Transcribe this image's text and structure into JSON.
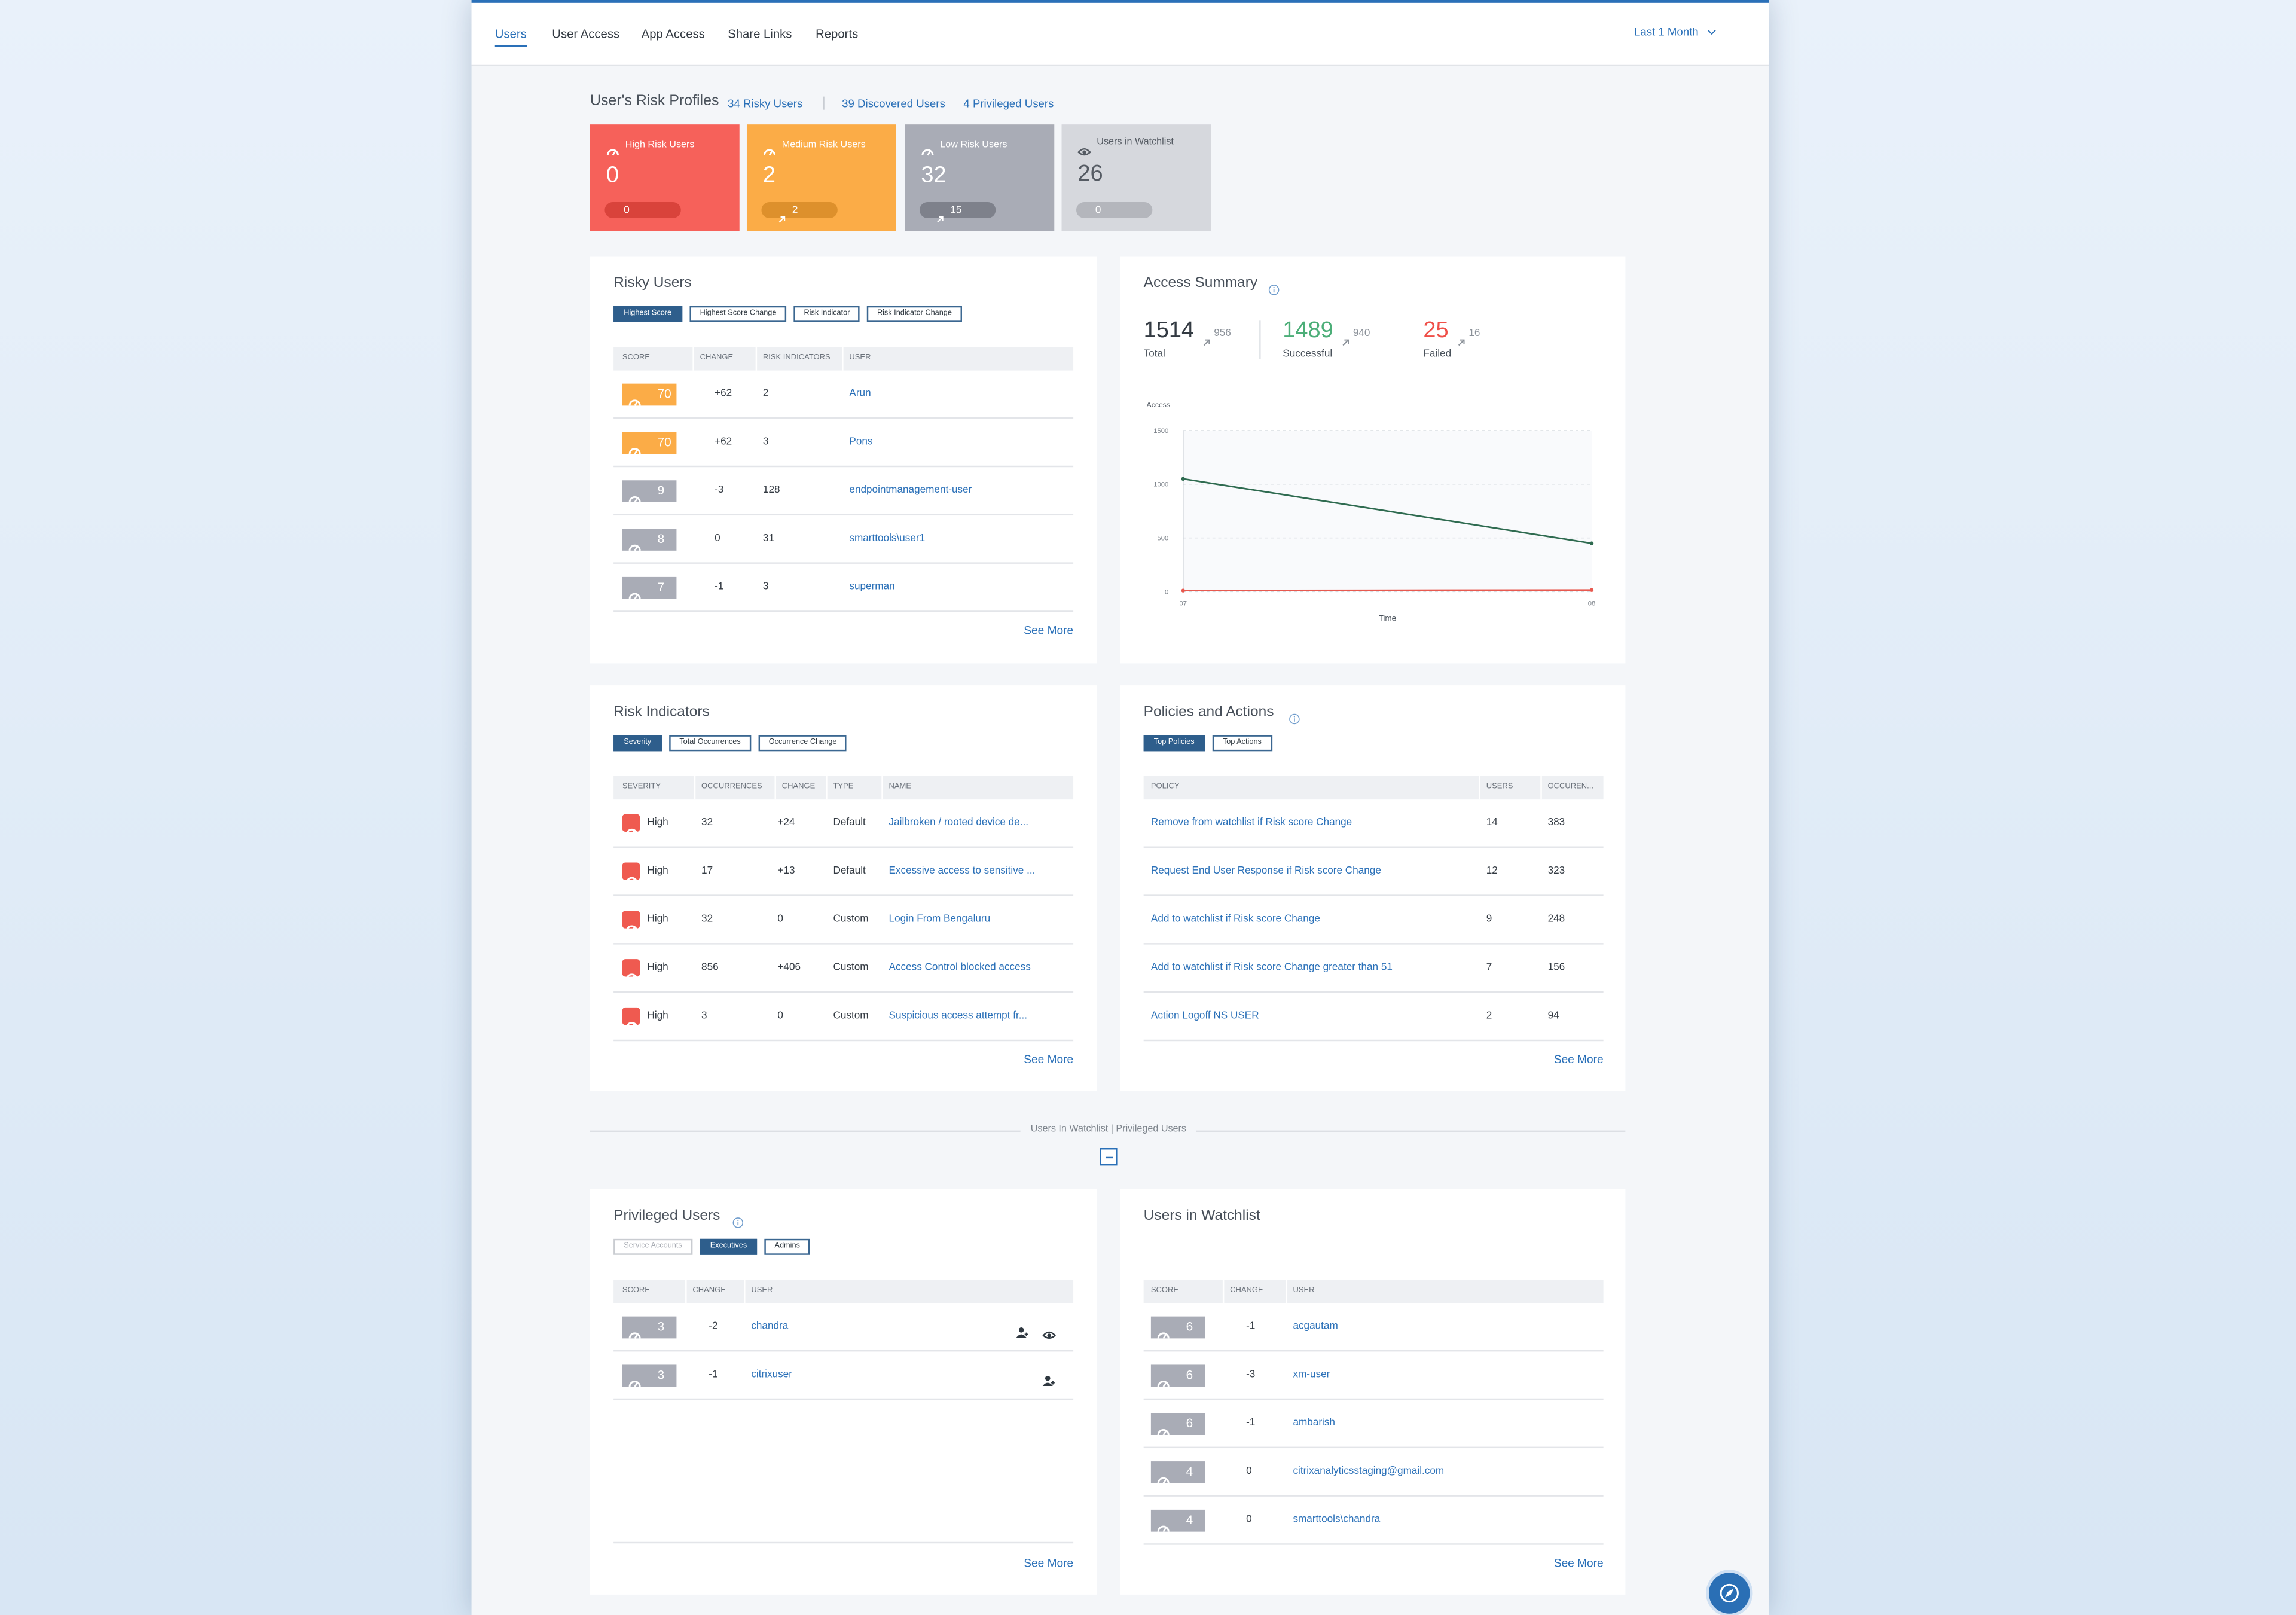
{
  "nav": {
    "tabs": [
      "Users",
      "User Access",
      "App Access",
      "Share Links",
      "Reports"
    ],
    "period": "Last 1 Month"
  },
  "risk_profiles": {
    "title": "User's Risk Profiles",
    "links": [
      "34 Risky Users",
      "39 Discovered Users",
      "4 Privileged Users"
    ],
    "cards": [
      {
        "label": "High Risk Users",
        "value": "0",
        "change": "0",
        "color": "#f6615a",
        "pill": "#d9433b",
        "text": "#ffffff"
      },
      {
        "label": "Medium Risk Users",
        "value": "2",
        "change": "2",
        "color": "#fbac47",
        "pill": "#dd902c",
        "text": "#ffffff"
      },
      {
        "label": "Low Risk Users",
        "value": "32",
        "change": "15",
        "color": "#a9acb6",
        "pill": "#7e818b",
        "text": "#ffffff"
      },
      {
        "label": "Users in Watchlist",
        "value": "26",
        "change": "0",
        "color": "#d6d8dd",
        "pill": "#b4b6bc",
        "text": "#555b63"
      }
    ]
  },
  "risky_users": {
    "title": "Risky Users",
    "tabs": [
      "Highest Score",
      "Highest Score Change",
      "Risk Indicator",
      "Risk Indicator Change"
    ],
    "columns": [
      "SCORE",
      "CHANGE",
      "RISK INDICATORS",
      "USER"
    ],
    "rows": [
      [
        "70",
        "+62",
        "2",
        "Arun"
      ],
      [
        "70",
        "+62",
        "3",
        "Pons"
      ],
      [
        "9",
        "-3",
        "128",
        "endpointmanagement-user"
      ],
      [
        "8",
        "0",
        "31",
        "smarttools\\user1"
      ],
      [
        "7",
        "-1",
        "3",
        "superman"
      ]
    ],
    "score_colors": [
      "#fbac47",
      "#fbac47",
      "#a9acb6",
      "#a9acb6",
      "#a9acb6"
    ],
    "see_more": "See More"
  },
  "access_summary": {
    "title": "Access Summary",
    "stats": [
      {
        "value": "1514",
        "change": "956",
        "label": "Total",
        "color": "#333a42"
      },
      {
        "value": "1489",
        "change": "940",
        "label": "Successful",
        "color": "#4cae78"
      },
      {
        "value": "25",
        "change": "16",
        "label": "Failed",
        "color": "#ef4f48"
      }
    ],
    "chart": {
      "type": "line",
      "y_label": "Access",
      "x_label": "Time",
      "x": [
        "07",
        "08"
      ],
      "series": [
        {
          "color": "#2f6b50",
          "values": [
            1050,
            450
          ]
        },
        {
          "color": "#e8594f",
          "values": [
            10,
            15
          ]
        }
      ],
      "ylim": [
        0,
        1500
      ],
      "yticks": [
        0,
        500,
        1000,
        1500
      ],
      "grid": true
    }
  },
  "risk_indicators": {
    "title": "Risk Indicators",
    "tabs": [
      "Severity",
      "Total Occurrences",
      "Occurrence Change"
    ],
    "columns": [
      "SEVERITY",
      "OCCURRENCES",
      "CHANGE",
      "TYPE",
      "NAME"
    ],
    "rows": [
      [
        "High",
        "32",
        "+24",
        "Default",
        "Jailbroken / rooted device de..."
      ],
      [
        "High",
        "17",
        "+13",
        "Default",
        "Excessive access to sensitive ..."
      ],
      [
        "High",
        "32",
        "0",
        "Custom",
        "Login From Bengaluru"
      ],
      [
        "High",
        "856",
        "+406",
        "Custom",
        "Access Control blocked access"
      ],
      [
        "High",
        "3",
        "0",
        "Custom",
        "Suspicious access attempt fr..."
      ]
    ],
    "see_more": "See More"
  },
  "policies": {
    "title": "Policies and Actions",
    "tabs": [
      "Top Policies",
      "Top Actions"
    ],
    "columns": [
      "POLICY",
      "USERS",
      "OCCUREN..."
    ],
    "rows": [
      [
        "Remove from watchlist if Risk score Change",
        "14",
        "383"
      ],
      [
        "Request End User Response if Risk score Change",
        "12",
        "323"
      ],
      [
        "Add to watchlist if Risk score Change",
        "9",
        "248"
      ],
      [
        "Add to watchlist if Risk score Change greater than 51",
        "7",
        "156"
      ],
      [
        "Action Logoff NS USER",
        "2",
        "94"
      ]
    ],
    "see_more": "See More"
  },
  "divider": "Users In Watchlist | Privileged Users",
  "privileged": {
    "title": "Privileged Users",
    "tabs": [
      "Service Accounts",
      "Executives",
      "Admins"
    ],
    "columns": [
      "SCORE",
      "CHANGE",
      "USER"
    ],
    "rows": [
      [
        "3",
        "-2",
        "chandra"
      ],
      [
        "3",
        "-1",
        "citrixuser"
      ]
    ],
    "score_colors": [
      "#a9acb6",
      "#a9acb6"
    ],
    "see_more": "See More"
  },
  "watchlist": {
    "title": "Users in Watchlist",
    "columns": [
      "SCORE",
      "CHANGE",
      "USER"
    ],
    "rows": [
      [
        "6",
        "-1",
        "acgautam"
      ],
      [
        "6",
        "-3",
        "xm-user"
      ],
      [
        "6",
        "-1",
        "ambarish"
      ],
      [
        "4",
        "0",
        "citrixanalyticsstaging@gmail.com"
      ],
      [
        "4",
        "0",
        "smarttools\\chandra"
      ]
    ],
    "score_colors": [
      "#a9acb6",
      "#a9acb6",
      "#a9acb6",
      "#a9acb6",
      "#a9acb6"
    ],
    "see_more": "See More"
  }
}
